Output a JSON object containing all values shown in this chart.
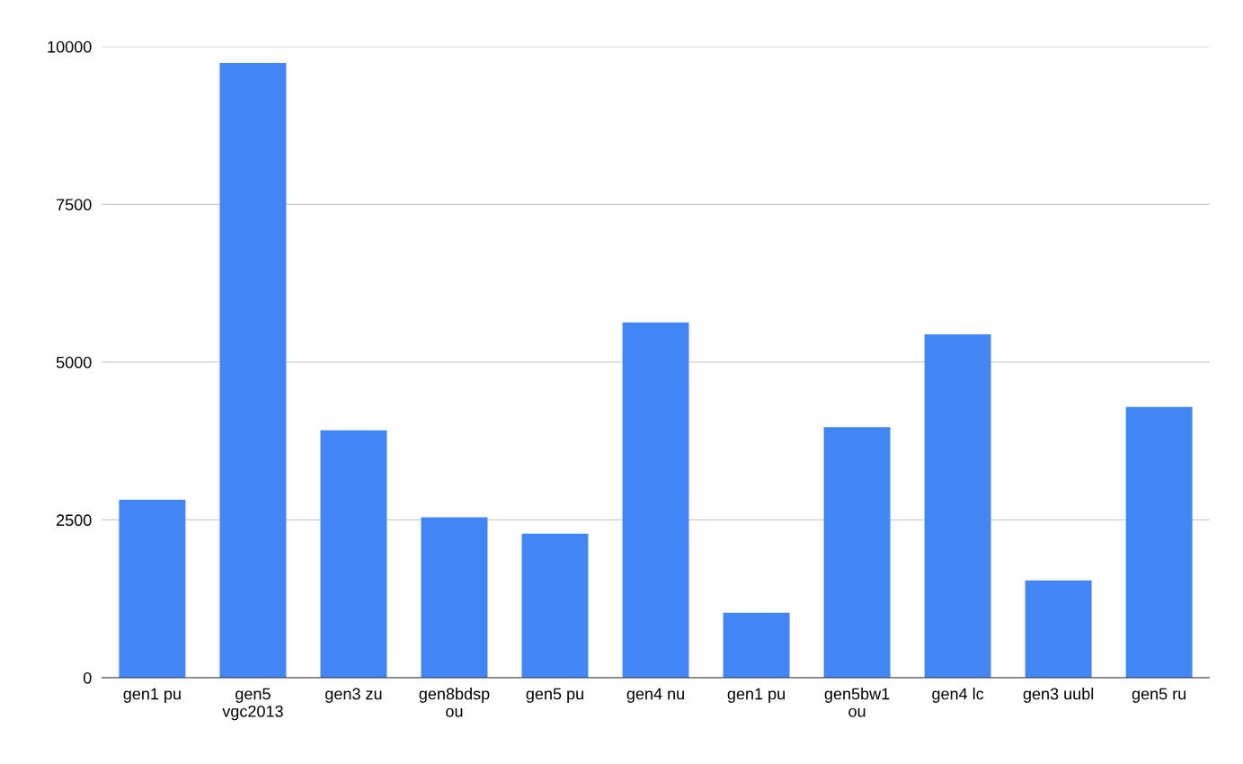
{
  "chart_data": {
    "type": "bar",
    "categories": [
      "gen1 pu",
      "gen5\nvgc2013",
      "gen3 zu",
      "gen8bdsp\nou",
      "gen5 pu",
      "gen4 nu",
      "gen1 pu",
      "gen5bw1\nou",
      "gen4 lc",
      "gen3 uubl",
      "gen5 ru"
    ],
    "values": [
      2820,
      9740,
      3920,
      2540,
      2280,
      5630,
      1030,
      3970,
      5440,
      1540,
      4290
    ],
    "color": "#4285f4",
    "ylim": [
      0,
      10000
    ],
    "yticks": [
      0,
      2500,
      5000,
      7500,
      10000
    ],
    "grid": "y"
  }
}
